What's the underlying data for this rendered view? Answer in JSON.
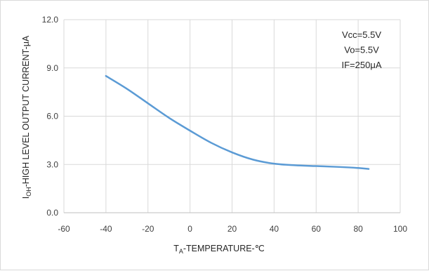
{
  "chart_data": {
    "type": "line",
    "xlabel": {
      "main": "T",
      "sub": "A",
      "rest": "-TEMPERATURE-℃"
    },
    "ylabel": {
      "main": "I",
      "sub": "OH",
      "rest": "-HIGH LEVEL OUTPUT CURRENT-μA"
    },
    "xlim": [
      -60,
      100
    ],
    "ylim": [
      0.0,
      12.0
    ],
    "x_ticks": [
      "-60",
      "-40",
      "-20",
      "0",
      "20",
      "40",
      "60",
      "80",
      "100"
    ],
    "y_ticks": [
      "0.0",
      "3.0",
      "6.0",
      "9.0",
      "12.0"
    ],
    "grid": true,
    "annotations": [
      "Vcc=5.5V",
      "Vo=5.5V",
      "IF=250μA"
    ],
    "series": [
      {
        "color": "#5b9bd5",
        "x": [
          -40,
          -30,
          -20,
          -10,
          0,
          10,
          20,
          30,
          40,
          50,
          60,
          70,
          80,
          85
        ],
        "y": [
          8.5,
          7.7,
          6.8,
          5.9,
          5.1,
          4.35,
          3.75,
          3.3,
          3.05,
          2.95,
          2.9,
          2.85,
          2.78,
          2.72
        ]
      }
    ]
  }
}
